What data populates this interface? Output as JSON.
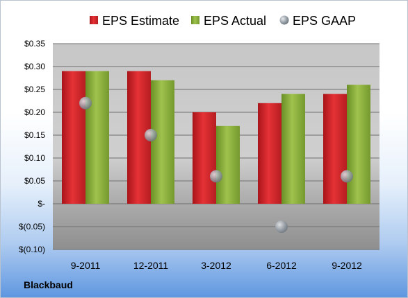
{
  "company": "Blackbaud",
  "chart_data": {
    "type": "bar",
    "categories": [
      "9-2011",
      "12-2011",
      "3-2012",
      "6-2012",
      "9-2012"
    ],
    "series": [
      {
        "name": "EPS Estimate",
        "kind": "bar",
        "color": "#d9262b",
        "values": [
          0.29,
          0.29,
          0.2,
          0.22,
          0.24
        ]
      },
      {
        "name": "EPS Actual",
        "kind": "bar",
        "color": "#8cb03e",
        "values": [
          0.29,
          0.27,
          0.17,
          0.24,
          0.26
        ]
      },
      {
        "name": "EPS GAAP",
        "kind": "marker",
        "color": "#9aa3ad",
        "values": [
          0.22,
          0.15,
          0.06,
          -0.05,
          0.06
        ]
      }
    ],
    "ylim": [
      -0.1,
      0.35
    ],
    "yticks": [
      0.35,
      0.3,
      0.25,
      0.2,
      0.15,
      0.1,
      0.05,
      0.0,
      -0.05,
      -0.1
    ],
    "ytick_labels": [
      "$0.35",
      "$0.30",
      "$0.25",
      "$0.20",
      "$0.15",
      "$0.10",
      "$0.05",
      "$-",
      "$(0.05)",
      "$(0.10)"
    ],
    "grid": true,
    "legend_position": "top"
  }
}
